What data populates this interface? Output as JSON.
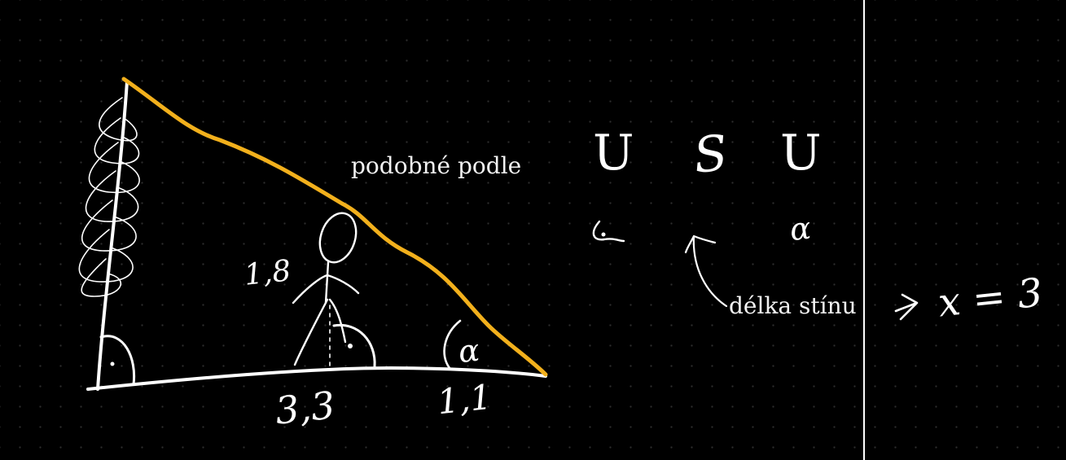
{
  "annotations": {
    "similarity_label": "podobné podle",
    "shadow_label": "délka stínu"
  },
  "handwriting": {
    "person_height": "1,8",
    "base_left": "3,3",
    "base_right": "1,1",
    "criteria": [
      "U",
      "S",
      "U"
    ],
    "angle_symbol": "α",
    "result": "x = 3"
  },
  "colors": {
    "background": "#000000",
    "ink": "#ffffff",
    "highlight": "#f2b01c"
  }
}
